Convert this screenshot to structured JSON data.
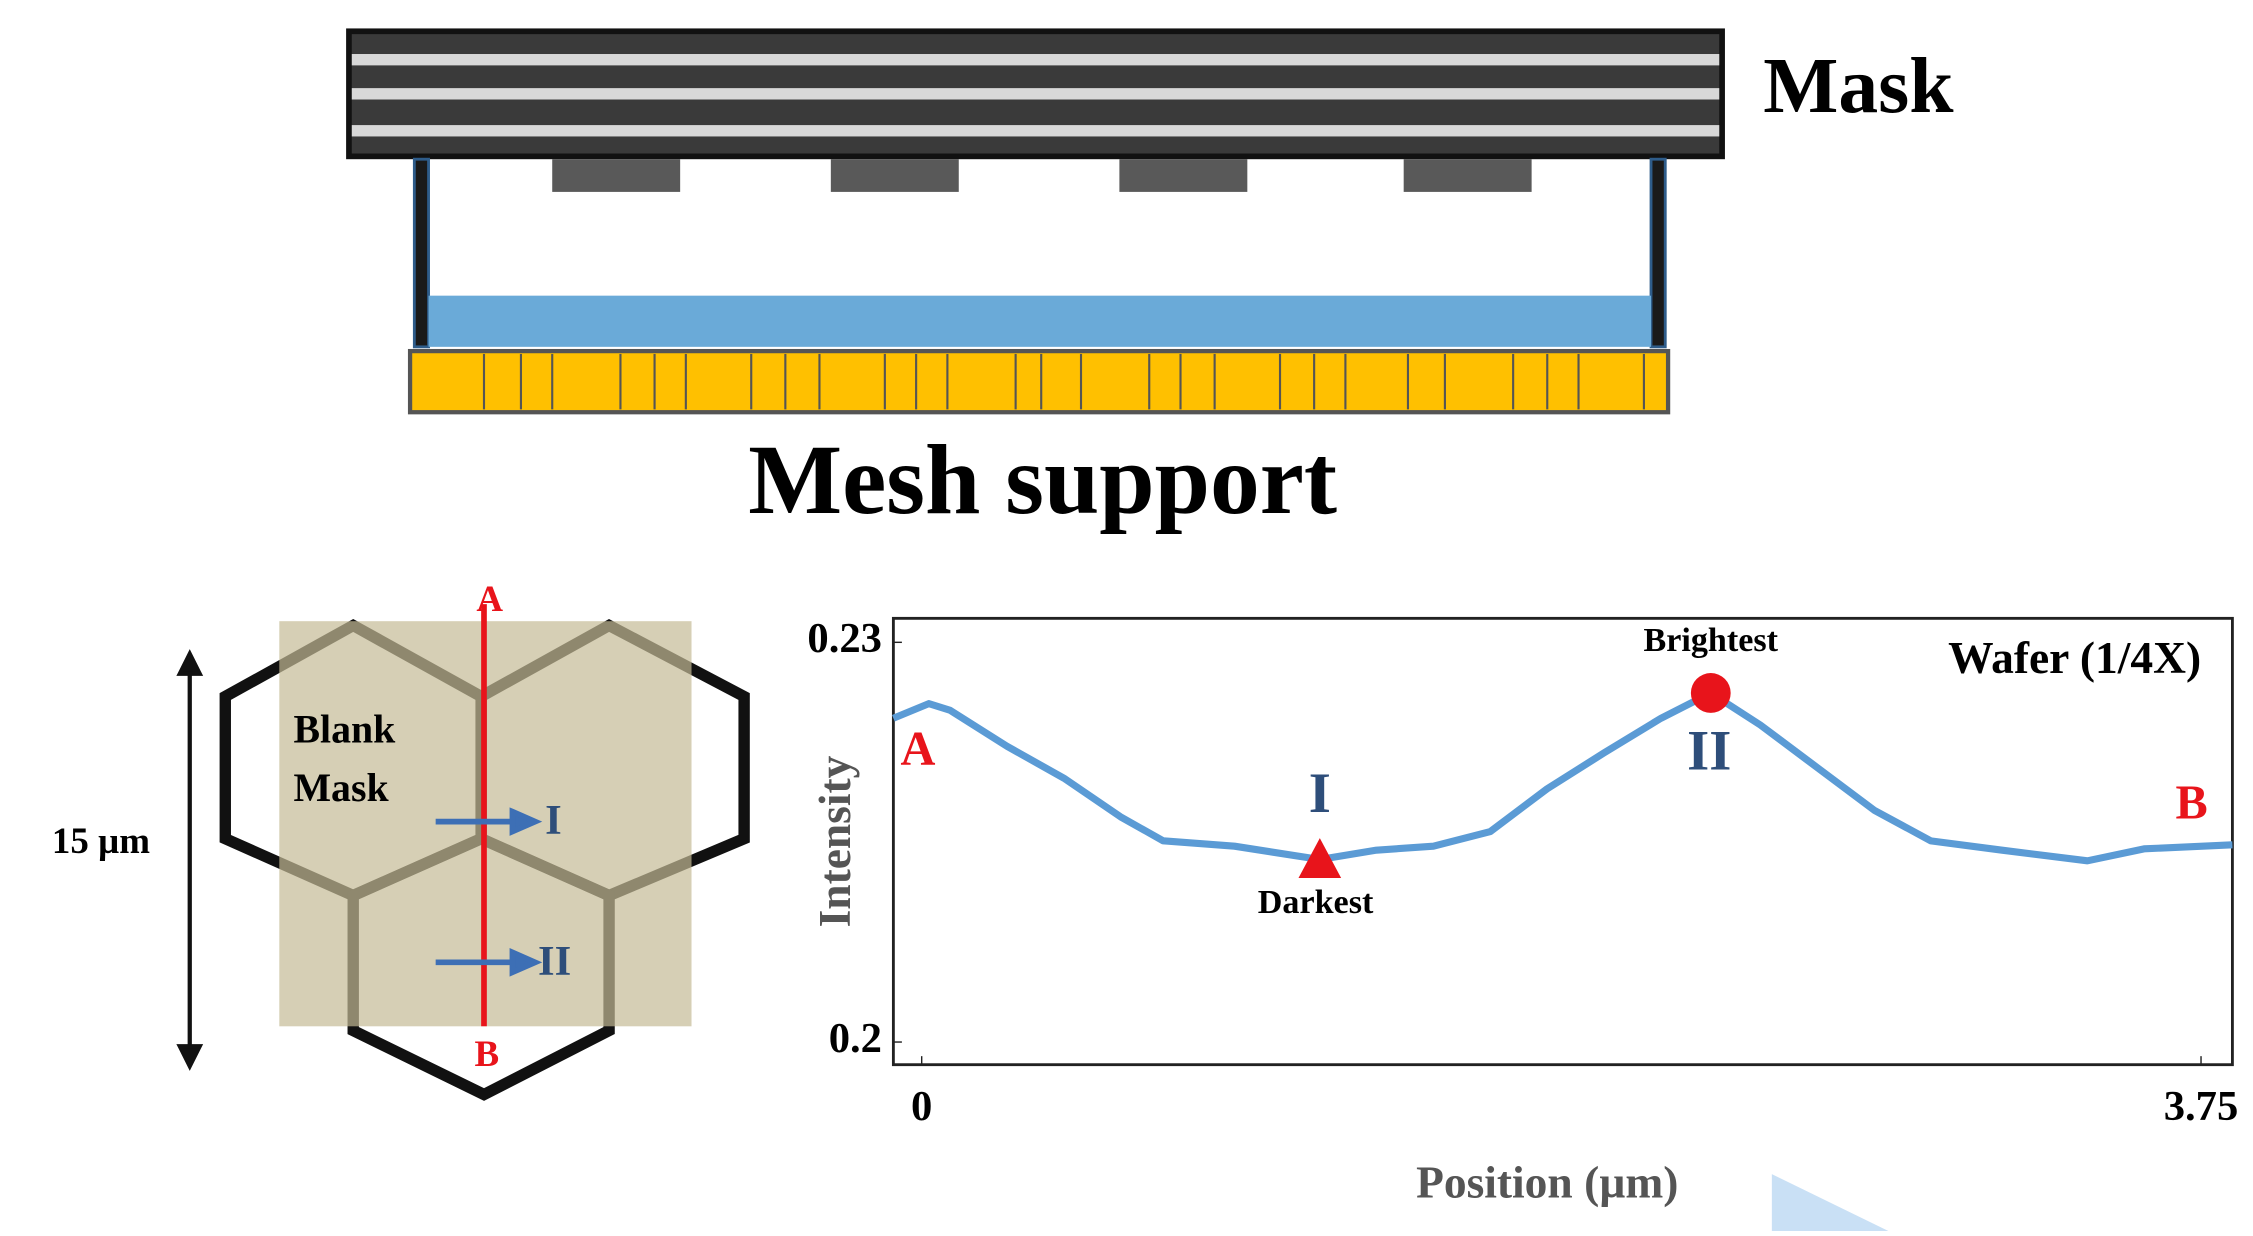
{
  "diagram": {
    "mask_label": "Mask",
    "mesh_label": "Mesh support",
    "hex": {
      "blank_line1": "Blank",
      "blank_line2": "Mask",
      "arrow1": "I",
      "arrow2": "II",
      "top": "A",
      "bottom": "B",
      "size": "15 µm"
    }
  },
  "chart_data": {
    "type": "line",
    "title": "Wafer (1/4X)",
    "x_label": "Position (µm)",
    "y_label": "Intensity",
    "x": [
      -0.083,
      0.021,
      0.083,
      0.25,
      0.417,
      0.583,
      0.708,
      0.917,
      1.167,
      1.333,
      1.5,
      1.667,
      1.833,
      2.0,
      2.167,
      2.313,
      2.458,
      2.625,
      2.792,
      2.958,
      3.167,
      3.417,
      3.583,
      3.842
    ],
    "series": [
      {
        "color": "#5b9bd5",
        "values": [
          0.2243,
          0.2254,
          0.2249,
          0.2222,
          0.2198,
          0.2169,
          0.2151,
          0.2147,
          0.2137,
          0.2144,
          0.2147,
          0.2158,
          0.219,
          0.2217,
          0.2243,
          0.2262,
          0.2238,
          0.2206,
          0.2174,
          0.2151,
          0.2144,
          0.2136,
          0.2145,
          0.2148
        ]
      }
    ],
    "points": [
      {
        "name": "Brightest",
        "x": 2.313,
        "y": 0.2262,
        "shape": "circle",
        "color": "#e8141b"
      },
      {
        "name": "Darkest",
        "x": 1.167,
        "y": 0.2137,
        "shape": "triangle",
        "color": "#e8141b"
      }
    ],
    "annotations": [
      "A",
      "B",
      "I",
      "II"
    ],
    "xlim": [
      -0.083,
      3.842
    ],
    "ylim": [
      0.1983,
      0.2318
    ],
    "xticks": [
      0,
      3.75
    ],
    "yticks": [
      0.2,
      0.23
    ]
  }
}
